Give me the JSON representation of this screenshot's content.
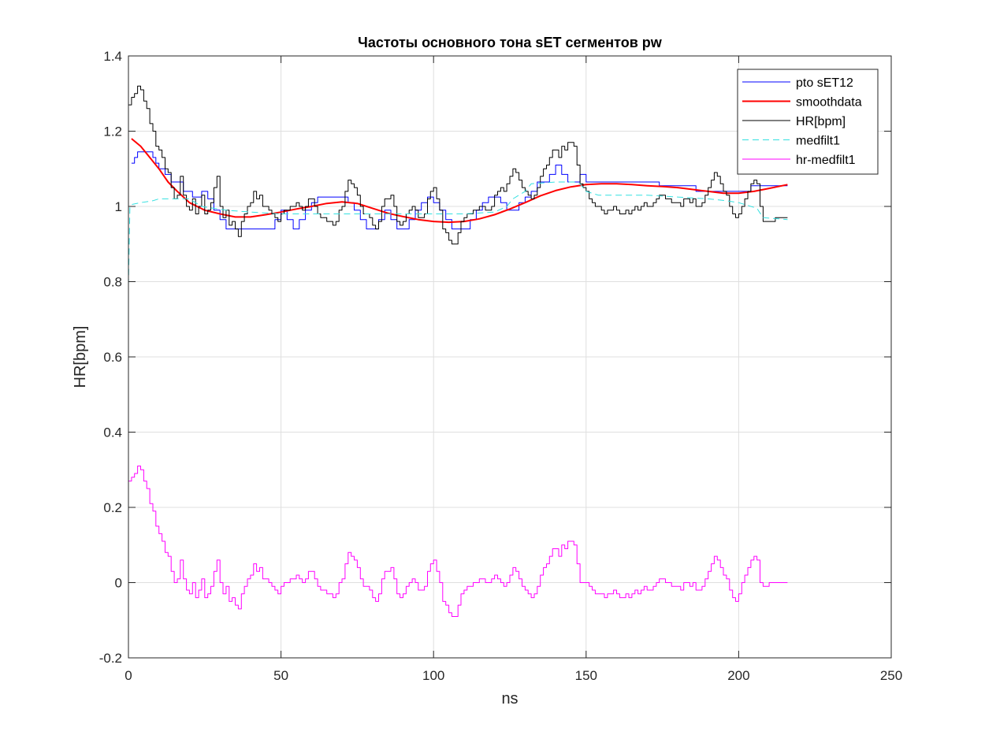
{
  "chart_data": {
    "type": "line",
    "title": "Частоты основного тона sET сегментов pw",
    "xlabel": "ns",
    "ylabel": "HR[bpm]",
    "xlim": [
      0,
      250
    ],
    "ylim": [
      -0.2,
      1.4
    ],
    "xticks": [
      "0",
      "50",
      "100",
      "150",
      "200",
      "250"
    ],
    "yticks": [
      "-0.2",
      "0",
      "0.2",
      "0.4",
      "0.6",
      "0.8",
      "1",
      "1.2",
      "1.4"
    ],
    "grid": true,
    "legend_position": "top-right",
    "series": [
      {
        "name": "pto sET12",
        "color": "#0000ff",
        "style": "step",
        "x": [
          1,
          2,
          3,
          8,
          9,
          10,
          12,
          14,
          16,
          18,
          20,
          21,
          22,
          24,
          26,
          28,
          30,
          32,
          36,
          46,
          48,
          50,
          52,
          54,
          56,
          58,
          60,
          62,
          64,
          72,
          74,
          76,
          78,
          80,
          82,
          84,
          86,
          88,
          90,
          92,
          94,
          96,
          98,
          100,
          102,
          104,
          106,
          108,
          112,
          114,
          116,
          118,
          120,
          122,
          124,
          128,
          130,
          132,
          134,
          136,
          138,
          140,
          142,
          144,
          146,
          148,
          150,
          154,
          156,
          160,
          168,
          174,
          176,
          178,
          180,
          184,
          186,
          190,
          200,
          204,
          206,
          216
        ],
        "y": [
          1.115,
          1.13,
          1.145,
          1.13,
          1.115,
          1.1,
          1.085,
          1.065,
          1.065,
          1.04,
          1.04,
          1.025,
          1.025,
          1.04,
          1.02,
          0.99,
          0.965,
          0.94,
          0.94,
          0.94,
          0.965,
          0.99,
          0.965,
          0.94,
          0.965,
          0.99,
          1.01,
          1.025,
          1.025,
          1.01,
          0.99,
          0.965,
          0.94,
          0.94,
          0.965,
          0.99,
          0.965,
          0.94,
          0.94,
          0.965,
          0.99,
          1.01,
          1.025,
          1.01,
          0.99,
          0.965,
          0.94,
          0.94,
          0.965,
          0.99,
          1.01,
          1.025,
          1.025,
          1.01,
          0.99,
          1.01,
          1.025,
          1.04,
          1.065,
          1.065,
          1.085,
          1.11,
          1.085,
          1.065,
          1.065,
          1.085,
          1.065,
          1.065,
          1.065,
          1.065,
          1.065,
          1.055,
          1.055,
          1.055,
          1.055,
          1.055,
          1.04,
          1.04,
          1.04,
          1.055,
          1.055,
          1.055
        ]
      },
      {
        "name": "smoothdata",
        "color": "#ff0000",
        "style": "line",
        "x": [
          1,
          4,
          7,
          10,
          13,
          16,
          20,
          25,
          30,
          35,
          40,
          45,
          50,
          55,
          60,
          65,
          70,
          75,
          80,
          85,
          90,
          95,
          100,
          105,
          110,
          115,
          120,
          125,
          130,
          135,
          140,
          145,
          150,
          155,
          160,
          165,
          170,
          175,
          180,
          185,
          190,
          195,
          200,
          205,
          210,
          216
        ],
        "y": [
          1.18,
          1.16,
          1.13,
          1.1,
          1.065,
          1.04,
          1.01,
          0.99,
          0.98,
          0.972,
          0.972,
          0.978,
          0.985,
          0.993,
          1.0,
          1.008,
          1.012,
          1.008,
          0.995,
          0.982,
          0.973,
          0.965,
          0.96,
          0.958,
          0.96,
          0.967,
          0.978,
          0.993,
          1.01,
          1.028,
          1.042,
          1.052,
          1.058,
          1.06,
          1.06,
          1.058,
          1.055,
          1.053,
          1.05,
          1.045,
          1.04,
          1.035,
          1.035,
          1.04,
          1.048,
          1.058
        ]
      },
      {
        "name": "HR[bpm]",
        "color": "#000000",
        "style": "step",
        "x": [
          0,
          1,
          2,
          3,
          4,
          5,
          6,
          7,
          8,
          9,
          10,
          11,
          12,
          13,
          14,
          15,
          16,
          17,
          18,
          19,
          20,
          21,
          22,
          23,
          24,
          25,
          26,
          27,
          28,
          29,
          30,
          31,
          32,
          33,
          34,
          35,
          36,
          37,
          38,
          39,
          40,
          41,
          42,
          43,
          44,
          45,
          46,
          47,
          48,
          49,
          50,
          51,
          52,
          53,
          54,
          55,
          56,
          57,
          58,
          59,
          60,
          61,
          62,
          63,
          64,
          65,
          66,
          67,
          68,
          69,
          70,
          71,
          72,
          73,
          74,
          75,
          76,
          77,
          78,
          79,
          80,
          81,
          82,
          83,
          84,
          85,
          86,
          87,
          88,
          89,
          90,
          91,
          92,
          93,
          94,
          95,
          96,
          97,
          98,
          99,
          100,
          101,
          102,
          103,
          104,
          105,
          106,
          107,
          108,
          109,
          110,
          111,
          112,
          113,
          114,
          115,
          116,
          117,
          118,
          119,
          120,
          121,
          122,
          123,
          124,
          125,
          126,
          127,
          128,
          129,
          130,
          131,
          132,
          133,
          134,
          135,
          136,
          137,
          138,
          139,
          140,
          141,
          142,
          143,
          144,
          145,
          146,
          147,
          148,
          149,
          150,
          151,
          152,
          153,
          154,
          155,
          156,
          157,
          158,
          159,
          160,
          161,
          162,
          163,
          164,
          165,
          166,
          167,
          168,
          169,
          170,
          171,
          172,
          173,
          174,
          175,
          176,
          177,
          178,
          179,
          180,
          181,
          182,
          183,
          184,
          185,
          186,
          187,
          188,
          189,
          190,
          191,
          192,
          193,
          194,
          195,
          196,
          197,
          198,
          199,
          200,
          201,
          202,
          203,
          204,
          205,
          206,
          207,
          208,
          209,
          210,
          211,
          212,
          213,
          214,
          215,
          216
        ],
        "y": [
          1.27,
          1.29,
          1.3,
          1.32,
          1.31,
          1.28,
          1.26,
          1.22,
          1.2,
          1.16,
          1.15,
          1.13,
          1.1,
          1.09,
          1.05,
          1.02,
          1.03,
          1.08,
          1.03,
          1.0,
          0.99,
          1.02,
          0.98,
          1.0,
          1.03,
          0.98,
          0.99,
          1.01,
          1.05,
          1.08,
          1.0,
          0.97,
          0.99,
          0.95,
          0.96,
          0.94,
          0.92,
          0.96,
          0.98,
          1.0,
          1.01,
          1.04,
          1.02,
          1.03,
          1.0,
          1.0,
          0.99,
          0.98,
          0.97,
          0.96,
          0.98,
          0.99,
          0.99,
          1.0,
          1.0,
          1.01,
          1.0,
          0.99,
          1.0,
          1.02,
          1.02,
          1.0,
          0.98,
          0.97,
          0.97,
          0.96,
          0.96,
          0.95,
          0.96,
          0.99,
          1.0,
          1.04,
          1.07,
          1.06,
          1.05,
          1.03,
          1.0,
          0.98,
          0.98,
          0.97,
          0.95,
          0.94,
          0.96,
          1.0,
          1.02,
          1.02,
          1.03,
          1.0,
          0.96,
          0.95,
          0.96,
          0.98,
          0.99,
          1.0,
          0.99,
          0.97,
          0.97,
          0.98,
          1.02,
          1.04,
          1.05,
          1.02,
          0.99,
          0.94,
          0.93,
          0.91,
          0.9,
          0.9,
          0.93,
          0.96,
          0.97,
          0.98,
          0.98,
          0.99,
          0.99,
          1.0,
          1.0,
          0.99,
          0.99,
          1.0,
          1.03,
          1.04,
          1.05,
          1.04,
          1.06,
          1.08,
          1.1,
          1.09,
          1.07,
          1.05,
          1.04,
          1.03,
          1.02,
          1.03,
          1.05,
          1.08,
          1.1,
          1.11,
          1.13,
          1.15,
          1.15,
          1.13,
          1.16,
          1.15,
          1.17,
          1.17,
          1.16,
          1.11,
          1.06,
          1.05,
          1.04,
          1.02,
          1.01,
          1.0,
          1.0,
          0.99,
          0.98,
          0.99,
          0.99,
          1.0,
          0.99,
          0.98,
          0.98,
          0.99,
          0.98,
          0.99,
          1.0,
          0.99,
          1.0,
          1.01,
          1.0,
          1.0,
          1.01,
          1.02,
          1.03,
          1.03,
          1.02,
          1.02,
          1.01,
          1.01,
          1.01,
          1.0,
          1.02,
          1.02,
          1.01,
          1.02,
          1.0,
          1.0,
          1.01,
          1.03,
          1.05,
          1.07,
          1.09,
          1.08,
          1.06,
          1.04,
          1.03,
          1.0,
          0.98,
          0.97,
          0.98,
          1.0,
          1.02,
          1.04,
          1.06,
          1.07,
          1.06,
          1.0,
          0.96,
          0.96,
          0.96,
          0.96,
          0.97,
          0.97,
          0.97,
          0.97,
          0.97
        ]
      },
      {
        "name": "medfilt1",
        "color": "#33e0e0",
        "style": "dashed",
        "x": [
          0,
          0.5,
          1,
          4,
          8,
          10,
          12,
          16,
          20,
          24,
          28,
          32,
          40,
          50,
          60,
          70,
          80,
          90,
          100,
          110,
          120,
          124,
          126,
          130,
          132,
          140,
          146,
          148,
          150,
          154,
          170,
          180,
          190,
          196,
          200,
          204,
          206,
          208,
          216
        ],
        "y": [
          0.79,
          1.0,
          1.005,
          1.01,
          1.015,
          1.02,
          1.02,
          1.02,
          1.02,
          1.0,
          0.995,
          0.99,
          0.985,
          0.98,
          0.98,
          0.98,
          0.98,
          0.98,
          0.98,
          0.98,
          0.985,
          1.0,
          1.02,
          1.04,
          1.06,
          1.065,
          1.065,
          1.06,
          1.04,
          1.03,
          1.03,
          1.025,
          1.02,
          1.015,
          1.01,
          1.0,
          0.995,
          0.97,
          0.965
        ]
      },
      {
        "name": "hr-medfilt1",
        "color": "#ff00ff",
        "style": "step",
        "x": [
          0,
          1,
          2,
          3,
          4,
          5,
          6,
          7,
          8,
          9,
          10,
          11,
          12,
          13,
          14,
          15,
          16,
          17,
          18,
          19,
          20,
          21,
          22,
          23,
          24,
          25,
          26,
          27,
          28,
          29,
          30,
          31,
          32,
          33,
          34,
          35,
          36,
          37,
          38,
          39,
          40,
          41,
          42,
          43,
          44,
          45,
          46,
          47,
          48,
          49,
          50,
          51,
          52,
          53,
          54,
          55,
          56,
          57,
          58,
          59,
          60,
          61,
          62,
          63,
          64,
          65,
          66,
          67,
          68,
          69,
          70,
          71,
          72,
          73,
          74,
          75,
          76,
          77,
          78,
          79,
          80,
          81,
          82,
          83,
          84,
          85,
          86,
          87,
          88,
          89,
          90,
          91,
          92,
          93,
          94,
          95,
          96,
          97,
          98,
          99,
          100,
          101,
          102,
          103,
          104,
          105,
          106,
          107,
          108,
          109,
          110,
          111,
          112,
          113,
          114,
          115,
          116,
          117,
          118,
          119,
          120,
          121,
          122,
          123,
          124,
          125,
          126,
          127,
          128,
          129,
          130,
          131,
          132,
          133,
          134,
          135,
          136,
          137,
          138,
          139,
          140,
          141,
          142,
          143,
          144,
          145,
          146,
          147,
          148,
          149,
          150,
          151,
          152,
          153,
          154,
          155,
          156,
          157,
          158,
          159,
          160,
          161,
          162,
          163,
          164,
          165,
          166,
          167,
          168,
          169,
          170,
          171,
          172,
          173,
          174,
          175,
          176,
          177,
          178,
          179,
          180,
          181,
          182,
          183,
          184,
          185,
          186,
          187,
          188,
          189,
          190,
          191,
          192,
          193,
          194,
          195,
          196,
          197,
          198,
          199,
          200,
          201,
          202,
          203,
          204,
          205,
          206,
          207,
          208,
          209,
          210,
          211,
          212,
          213,
          214,
          215,
          216
        ],
        "y": [
          0.27,
          0.28,
          0.29,
          0.31,
          0.3,
          0.27,
          0.25,
          0.21,
          0.19,
          0.15,
          0.13,
          0.11,
          0.08,
          0.07,
          0.03,
          0.0,
          0.01,
          0.06,
          0.01,
          -0.02,
          -0.03,
          0.0,
          -0.04,
          -0.02,
          0.01,
          -0.04,
          -0.03,
          -0.01,
          0.03,
          0.06,
          0.0,
          -0.03,
          -0.01,
          -0.05,
          -0.04,
          -0.06,
          -0.07,
          -0.03,
          -0.01,
          0.01,
          0.02,
          0.05,
          0.03,
          0.04,
          0.01,
          0.01,
          0.0,
          -0.01,
          -0.02,
          -0.03,
          -0.01,
          0.0,
          0.0,
          0.01,
          0.01,
          0.02,
          0.01,
          0.0,
          0.01,
          0.03,
          0.03,
          0.01,
          -0.01,
          -0.02,
          -0.02,
          -0.03,
          -0.03,
          -0.04,
          -0.03,
          0.0,
          0.01,
          0.05,
          0.08,
          0.07,
          0.06,
          0.04,
          0.01,
          -0.01,
          -0.01,
          -0.02,
          -0.04,
          -0.05,
          -0.03,
          0.01,
          0.03,
          0.03,
          0.04,
          0.01,
          -0.03,
          -0.04,
          -0.03,
          -0.01,
          0.0,
          0.01,
          0.0,
          -0.02,
          -0.02,
          -0.01,
          0.03,
          0.05,
          0.06,
          0.03,
          0.0,
          -0.05,
          -0.06,
          -0.08,
          -0.09,
          -0.09,
          -0.06,
          -0.03,
          -0.02,
          -0.01,
          -0.01,
          0.0,
          0.0,
          0.01,
          0.01,
          0.0,
          0.0,
          0.01,
          0.02,
          0.01,
          0.0,
          -0.01,
          0.0,
          0.02,
          0.04,
          0.03,
          0.01,
          -0.01,
          -0.02,
          -0.03,
          -0.04,
          -0.03,
          -0.01,
          0.02,
          0.04,
          0.05,
          0.07,
          0.09,
          0.09,
          0.07,
          0.1,
          0.09,
          0.11,
          0.11,
          0.1,
          0.05,
          0.0,
          0.0,
          0.0,
          -0.01,
          -0.02,
          -0.03,
          -0.03,
          -0.03,
          -0.04,
          -0.03,
          -0.03,
          -0.02,
          -0.03,
          -0.04,
          -0.04,
          -0.03,
          -0.04,
          -0.03,
          -0.02,
          -0.03,
          -0.02,
          -0.01,
          -0.02,
          -0.02,
          -0.01,
          0.0,
          0.01,
          0.01,
          0.0,
          0.0,
          -0.01,
          -0.01,
          -0.01,
          -0.02,
          0.0,
          0.0,
          -0.01,
          0.0,
          -0.02,
          -0.02,
          -0.01,
          0.01,
          0.03,
          0.05,
          0.07,
          0.06,
          0.04,
          0.02,
          0.01,
          -0.02,
          -0.04,
          -0.05,
          -0.03,
          0.0,
          0.02,
          0.04,
          0.06,
          0.07,
          0.06,
          0.0,
          -0.01,
          -0.01,
          0.0,
          0.0,
          0.0,
          0.0,
          0.0,
          0.0,
          0.0
        ]
      }
    ]
  }
}
